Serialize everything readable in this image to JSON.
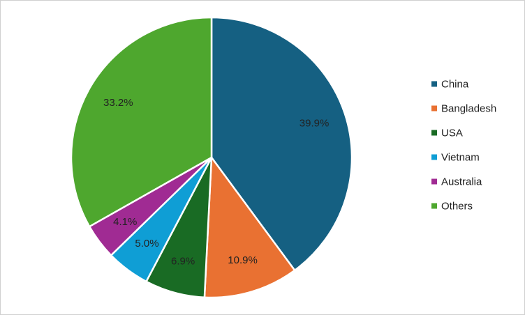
{
  "chart_data": {
    "type": "pie",
    "categories": [
      "China",
      "Bangladesh",
      "USA",
      "Vietnam",
      "Australia",
      "Others"
    ],
    "values": [
      39.9,
      10.9,
      6.9,
      5.0,
      4.1,
      33.2
    ],
    "value_labels": [
      "39.9%",
      "10.9%",
      "6.9%",
      "5.0%",
      "4.1%",
      "33.2%"
    ],
    "colors": [
      "#156082",
      "#e97132",
      "#196b24",
      "#0f9ed5",
      "#a02b93",
      "#4ea72e"
    ],
    "legend": "right"
  }
}
